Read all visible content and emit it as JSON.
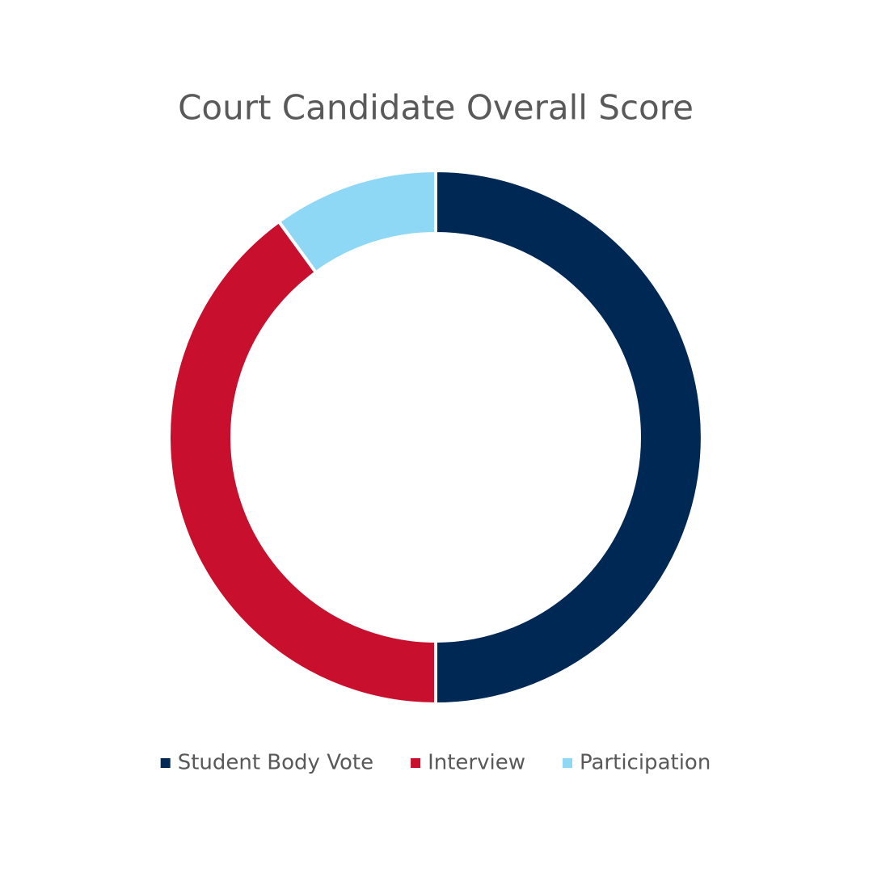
{
  "chart_data": {
    "type": "donut",
    "title": "Court Candidate Overall Score",
    "categories": [
      "Student Body Vote",
      "Interview",
      "Participation"
    ],
    "values": [
      50,
      40,
      10
    ],
    "colors": [
      "#002855",
      "#c8102e",
      "#8fd8f5"
    ],
    "legend": "bottom"
  }
}
